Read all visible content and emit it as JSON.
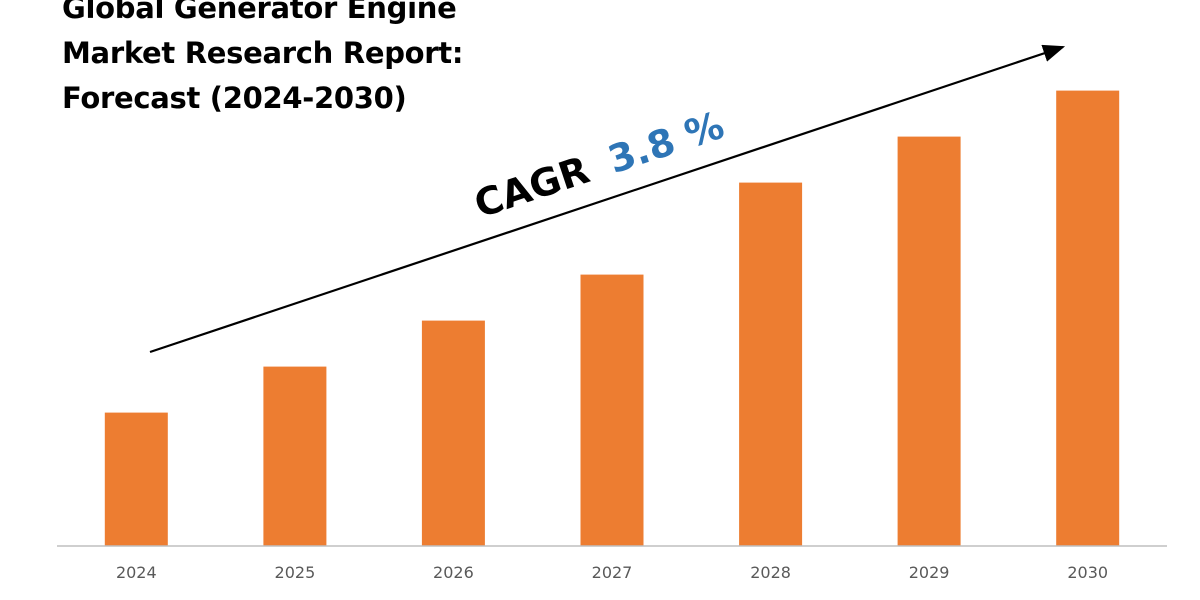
{
  "chart_data": {
    "type": "bar",
    "title_lines": [
      "Global Generator Engine",
      "Market Research Report:",
      "Forecast (2024-2030)"
    ],
    "categories": [
      "2024",
      "2025",
      "2026",
      "2027",
      "2028",
      "2029",
      "2030"
    ],
    "values": [
      29,
      39,
      49,
      59,
      79,
      89,
      99
    ],
    "ylim": [
      0,
      100
    ],
    "grid": false,
    "axes_visible": {
      "x": true,
      "y": false
    },
    "annotation": {
      "prefix": "CAGR",
      "value": "3.8 %",
      "arrow": "trend-up"
    },
    "colors": {
      "bar": "#ED7D31",
      "annotation_value": "#2E75B6",
      "annotation_prefix": "#000000",
      "axis": "#BFBFBF",
      "tick_text": "#595959"
    }
  }
}
